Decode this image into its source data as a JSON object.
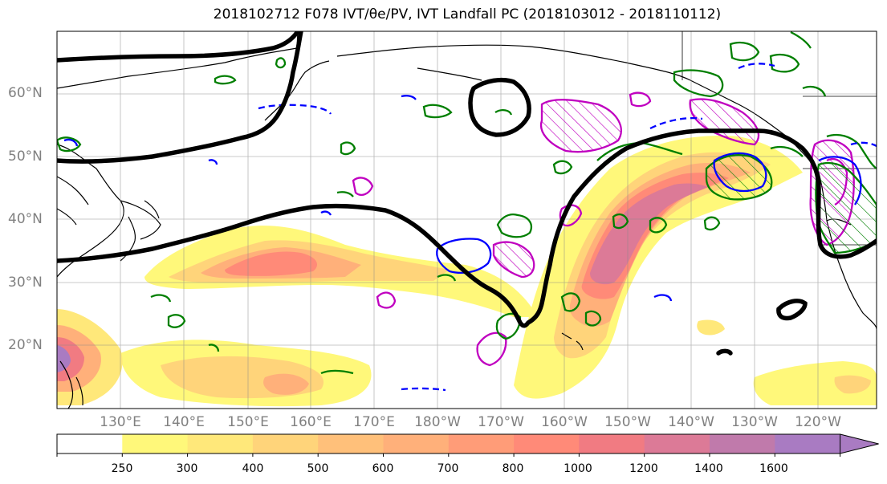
{
  "title": "2018102712 F078 IVT/θe/PV, IVT Landfall PC (2018103012 - 2018110112)",
  "lat_labels": [
    "60°N",
    "50°N",
    "40°N",
    "30°N",
    "20°N"
  ],
  "lon_labels": [
    "130°E",
    "140°E",
    "150°E",
    "160°E",
    "170°E",
    "180°W",
    "170°W",
    "160°W",
    "150°W",
    "140°W",
    "130°W",
    "120°W"
  ],
  "colorbar": {
    "ticks": [
      "250",
      "300",
      "400",
      "500",
      "600",
      "700",
      "800",
      "1000",
      "1200",
      "1400",
      "1600"
    ],
    "colors": [
      "#ffffff",
      "#fff87a",
      "#ffe87a",
      "#ffd47a",
      "#ffc07a",
      "#ffb07a",
      "#ff9c78",
      "#ff8a78",
      "#f17b82",
      "#dc7a97",
      "#c07aab",
      "#a97bc2"
    ]
  },
  "line_colors": {
    "thick_contour": "#000000",
    "green_contour": "#007f00",
    "blue_contour": "#0000ff",
    "magenta_contour": "#c000c0"
  }
}
